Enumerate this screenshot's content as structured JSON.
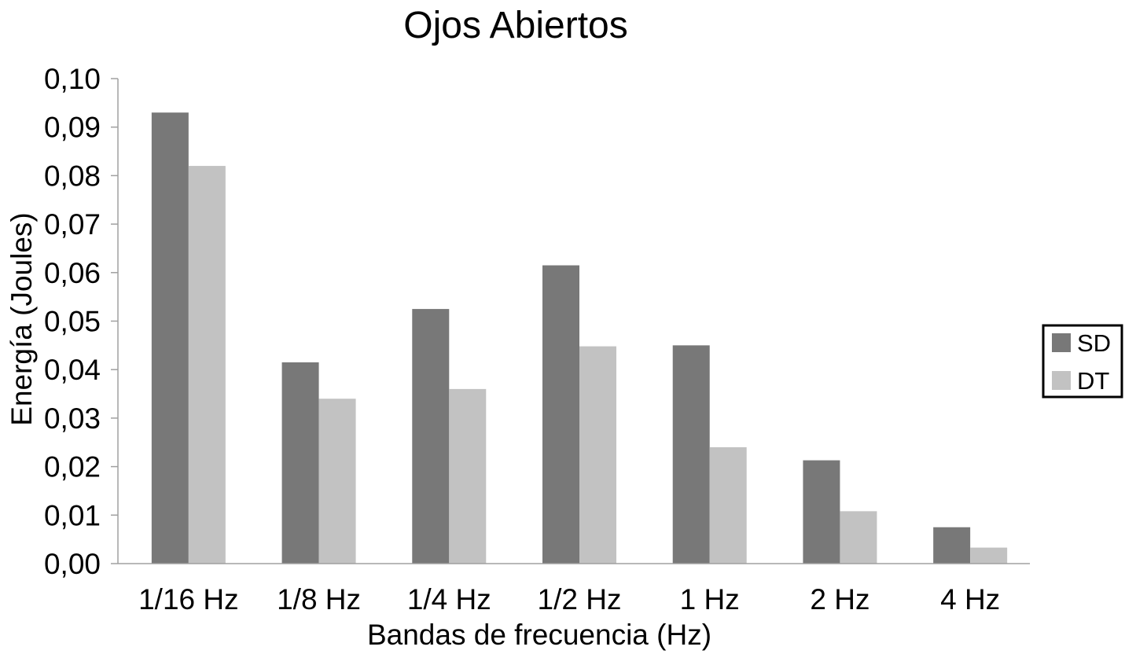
{
  "chart_data": {
    "type": "bar",
    "title": "Ojos Abiertos",
    "xlabel": "Bandas de frecuencia (Hz)",
    "ylabel": "Energía (Joules)",
    "categories": [
      "1/16 Hz",
      "1/8 Hz",
      "1/4 Hz",
      "1/2 Hz",
      "1 Hz",
      "2 Hz",
      "4 Hz"
    ],
    "series": [
      {
        "name": "SD",
        "color": "#787878",
        "values": [
          0.093,
          0.0415,
          0.0525,
          0.0615,
          0.045,
          0.0213,
          0.0075
        ]
      },
      {
        "name": "DT",
        "color": "#c2c2c2",
        "values": [
          0.082,
          0.034,
          0.036,
          0.0448,
          0.024,
          0.0108,
          0.0033
        ]
      }
    ],
    "ylim": [
      0,
      0.1
    ],
    "yticks": [
      "0,00",
      "0,01",
      "0,02",
      "0,03",
      "0,04",
      "0,05",
      "0,06",
      "0,07",
      "0,08",
      "0,09",
      "0,10"
    ],
    "grid": false,
    "legend": "right"
  }
}
